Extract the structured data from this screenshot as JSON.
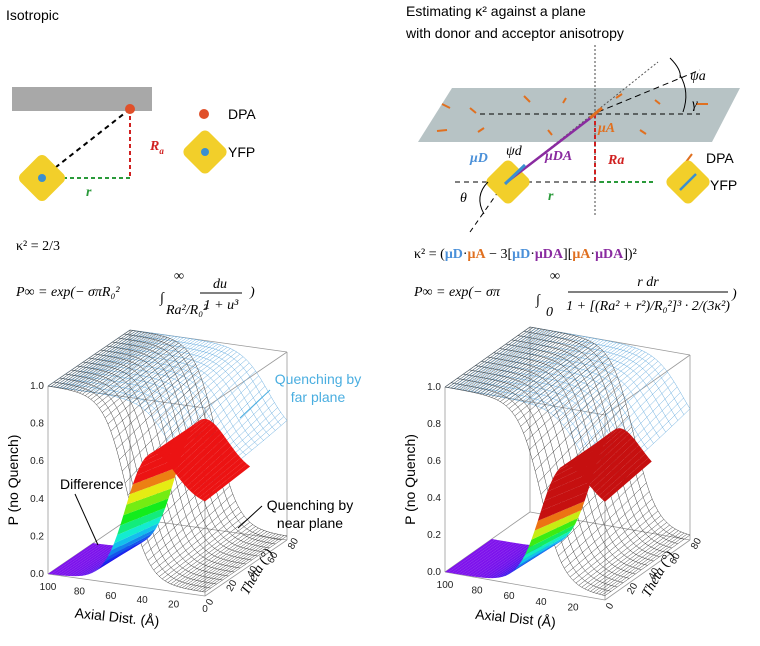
{
  "left": {
    "title": "Isotropic",
    "legend": [
      "DPA",
      "YFP"
    ],
    "label_R": "R",
    "label_R_sub": "a",
    "label_r": "r",
    "kappa": "κ² = 2/3",
    "equation": {
      "head": "P∞ = exp(− σπR₀²",
      "integral": "∫",
      "upper": "∞",
      "lower": "Ra²/R₀²",
      "numerator": "du",
      "denominator": "1 + u³",
      "tail": ")"
    },
    "plot": {
      "ylabel": "P (no Quench)",
      "xlabel": "Axial Dist. (Å)",
      "zlabel": "Theta (°)",
      "yticks": [
        "0.0",
        "0.2",
        "0.4",
        "0.6",
        "0.8",
        "1.0"
      ],
      "xticks": [
        "100",
        "80",
        "60",
        "40",
        "20",
        "0"
      ],
      "zticks": [
        "0",
        "20",
        "40",
        "60",
        "80"
      ],
      "annotations": [
        "Quenching by",
        "far plane",
        "Difference",
        "Quenching by",
        "near plane"
      ]
    }
  },
  "right": {
    "title": [
      "Estimating κ² against a plane",
      "with donor and acceptor anisotropy"
    ],
    "legend": [
      "DPA",
      "YFP"
    ],
    "labels": {
      "psi_a": "ψa",
      "gamma": "γ",
      "muA": "μA",
      "muD": "μD",
      "muDA": "μDA",
      "psi_d": "ψd",
      "R": "Ra",
      "r": "r",
      "theta": "θ"
    },
    "kappa": [
      {
        "text": "κ² = (",
        "color": "#000000"
      },
      {
        "text": "μD",
        "color": "#4a90d9"
      },
      {
        "text": "·",
        "color": "#000000"
      },
      {
        "text": "μA",
        "color": "#e07020"
      },
      {
        "text": " − 3[",
        "color": "#000000"
      },
      {
        "text": "μD",
        "color": "#4a90d9"
      },
      {
        "text": "·",
        "color": "#000000"
      },
      {
        "text": "μDA",
        "color": "#8a2ba0"
      },
      {
        "text": "][",
        "color": "#000000"
      },
      {
        "text": "μA",
        "color": "#e07020"
      },
      {
        "text": "·",
        "color": "#000000"
      },
      {
        "text": "μDA",
        "color": "#8a2ba0"
      },
      {
        "text": "])²",
        "color": "#000000"
      }
    ],
    "equation": {
      "head": "P∞ = exp(− σπ",
      "integral": "∫",
      "upper": "∞",
      "lower": "0",
      "numerator": "r dr",
      "denominator": "1 + [(Ra² + r²)/R₀²]³ · 2/(3κ²)",
      "tail": ")"
    },
    "plot": {
      "ylabel": "P (no Quench)",
      "xlabel": "Axial Dist (Å)",
      "zlabel": "Theta (°)",
      "yticks": [
        "0.0",
        "0.2",
        "0.4",
        "0.6",
        "0.8",
        "1.0"
      ],
      "xticks": [
        "100",
        "80",
        "60",
        "40",
        "20"
      ],
      "zticks": [
        "0",
        "20",
        "40",
        "60",
        "80"
      ]
    }
  }
}
